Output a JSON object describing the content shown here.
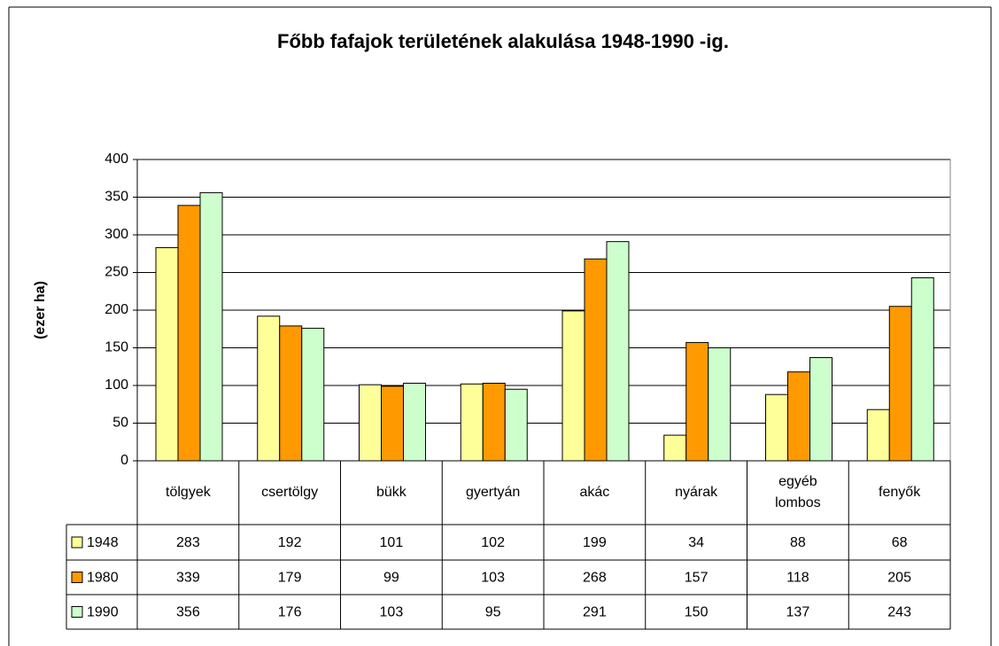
{
  "chart_data": {
    "type": "bar",
    "title": "Főbb fafajok területének alakulása 1948-1990 -ig.",
    "y_label": "(ezer ha)",
    "categories": [
      "tölgyek",
      "csertölgy",
      "bükk",
      "gyertyán",
      "akác",
      "nyárak",
      "egyéb lombos",
      "fenyők"
    ],
    "series": [
      {
        "name": "1948",
        "color": "#ffff99",
        "values": [
          283,
          192,
          101,
          102,
          199,
          34,
          88,
          68
        ]
      },
      {
        "name": "1980",
        "color": "#ff9900",
        "values": [
          339,
          179,
          99,
          103,
          268,
          157,
          118,
          205
        ]
      },
      {
        "name": "1990",
        "color": "#ccffcc",
        "values": [
          356,
          176,
          103,
          95,
          291,
          150,
          137,
          243
        ]
      }
    ],
    "ylim": [
      0,
      400
    ],
    "yticks": [
      0,
      50,
      100,
      150,
      200,
      250,
      300,
      350,
      400
    ],
    "grid": true
  }
}
